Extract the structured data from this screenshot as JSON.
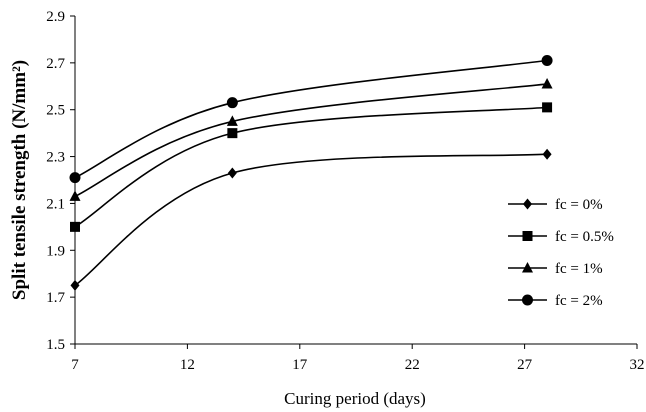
{
  "chart_data": {
    "type": "line",
    "title": "",
    "xlabel": "Curing period (days)",
    "ylabel": "Split tensile strength (N/mm²)",
    "xlim": [
      7,
      32
    ],
    "ylim": [
      1.5,
      2.9
    ],
    "xticks": [
      "7",
      "12",
      "17",
      "22",
      "27",
      "32"
    ],
    "yticks": [
      "1.5",
      "1.7",
      "1.9",
      "2.1",
      "2.3",
      "2.5",
      "2.7",
      "2.9"
    ],
    "grid": false,
    "legend_position": "right",
    "x": [
      7,
      14,
      28
    ],
    "series": [
      {
        "name": "fc = 0%",
        "marker": "diamond",
        "values": [
          1.75,
          2.23,
          2.31
        ]
      },
      {
        "name": "fc = 0.5%",
        "marker": "square",
        "values": [
          2.0,
          2.4,
          2.51
        ]
      },
      {
        "name": "fc = 1%",
        "marker": "triangle",
        "values": [
          2.13,
          2.45,
          2.61
        ]
      },
      {
        "name": "fc = 2%",
        "marker": "circle",
        "values": [
          2.21,
          2.53,
          2.71
        ]
      }
    ],
    "colors": {
      "line": "#000000",
      "marker": "#000000"
    }
  }
}
